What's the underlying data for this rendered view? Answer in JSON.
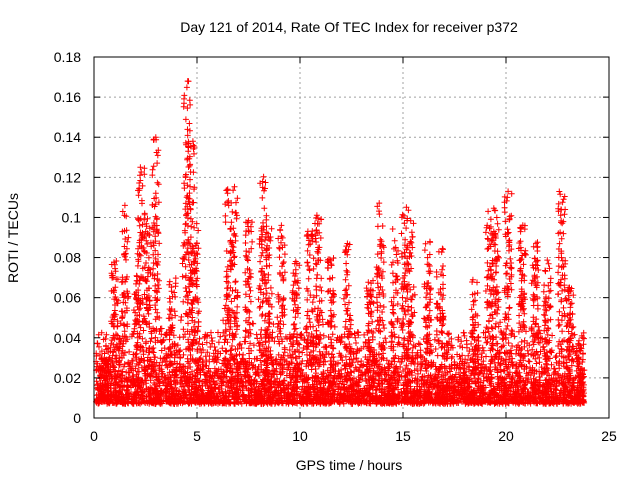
{
  "chart_data": {
    "type": "scatter",
    "title": "Day 121 of 2014, Rate Of TEC Index for receiver p372",
    "xlabel": "GPS time / hours",
    "ylabel": "ROTI / TECUs",
    "xlim": [
      0,
      25
    ],
    "ylim": [
      0,
      0.18
    ],
    "xticks": [
      0,
      5,
      10,
      15,
      20,
      25
    ],
    "yticks": [
      0,
      0.02,
      0.04,
      0.06,
      0.08,
      0.1,
      0.12,
      0.14,
      0.16,
      0.18
    ],
    "xtick_labels": [
      "0",
      "5",
      "10",
      "15",
      "20",
      "25"
    ],
    "ytick_labels": [
      "0",
      "0.02",
      "0.04",
      "0.06",
      "0.08",
      "0.1",
      "0.12",
      "0.14",
      "0.16",
      "0.18"
    ],
    "grid": true,
    "marker": "plus",
    "color": "#ff0000",
    "data_x_range": [
      0.1,
      23.8
    ],
    "baseline_range": [
      0.003,
      0.03
    ],
    "peaks": [
      {
        "x": 0.5,
        "y": 0.03
      },
      {
        "x": 1.0,
        "y": 0.08
      },
      {
        "x": 1.5,
        "y": 0.106
      },
      {
        "x": 2.1,
        "y": 0.085
      },
      {
        "x": 2.3,
        "y": 0.125
      },
      {
        "x": 2.6,
        "y": 0.1
      },
      {
        "x": 3.0,
        "y": 0.14
      },
      {
        "x": 3.8,
        "y": 0.07
      },
      {
        "x": 4.5,
        "y": 0.168
      },
      {
        "x": 4.7,
        "y": 0.138
      },
      {
        "x": 4.9,
        "y": 0.1
      },
      {
        "x": 6.5,
        "y": 0.115
      },
      {
        "x": 6.8,
        "y": 0.118
      },
      {
        "x": 7.5,
        "y": 0.1
      },
      {
        "x": 8.2,
        "y": 0.125
      },
      {
        "x": 8.5,
        "y": 0.095
      },
      {
        "x": 9.1,
        "y": 0.1
      },
      {
        "x": 9.8,
        "y": 0.08
      },
      {
        "x": 10.5,
        "y": 0.095
      },
      {
        "x": 10.9,
        "y": 0.102
      },
      {
        "x": 11.5,
        "y": 0.08
      },
      {
        "x": 12.3,
        "y": 0.087
      },
      {
        "x": 13.4,
        "y": 0.07
      },
      {
        "x": 13.9,
        "y": 0.108
      },
      {
        "x": 14.6,
        "y": 0.095
      },
      {
        "x": 15.1,
        "y": 0.106
      },
      {
        "x": 15.4,
        "y": 0.1
      },
      {
        "x": 16.2,
        "y": 0.09
      },
      {
        "x": 16.8,
        "y": 0.085
      },
      {
        "x": 18.5,
        "y": 0.07
      },
      {
        "x": 19.2,
        "y": 0.103
      },
      {
        "x": 19.5,
        "y": 0.108
      },
      {
        "x": 20.1,
        "y": 0.113
      },
      {
        "x": 20.8,
        "y": 0.097
      },
      {
        "x": 21.4,
        "y": 0.088
      },
      {
        "x": 22.0,
        "y": 0.08
      },
      {
        "x": 22.7,
        "y": 0.113
      },
      {
        "x": 23.1,
        "y": 0.066
      },
      {
        "x": 23.6,
        "y": 0.035
      }
    ],
    "outliers": [
      {
        "x": 4.55,
        "y": 0.168
      },
      {
        "x": 4.8,
        "y": 0.138
      },
      {
        "x": 3.0,
        "y": 0.14
      },
      {
        "x": 20.1,
        "y": 0.113
      },
      {
        "x": 1.5,
        "y": 0.106
      },
      {
        "x": 12.3,
        "y": 0.087
      }
    ]
  }
}
